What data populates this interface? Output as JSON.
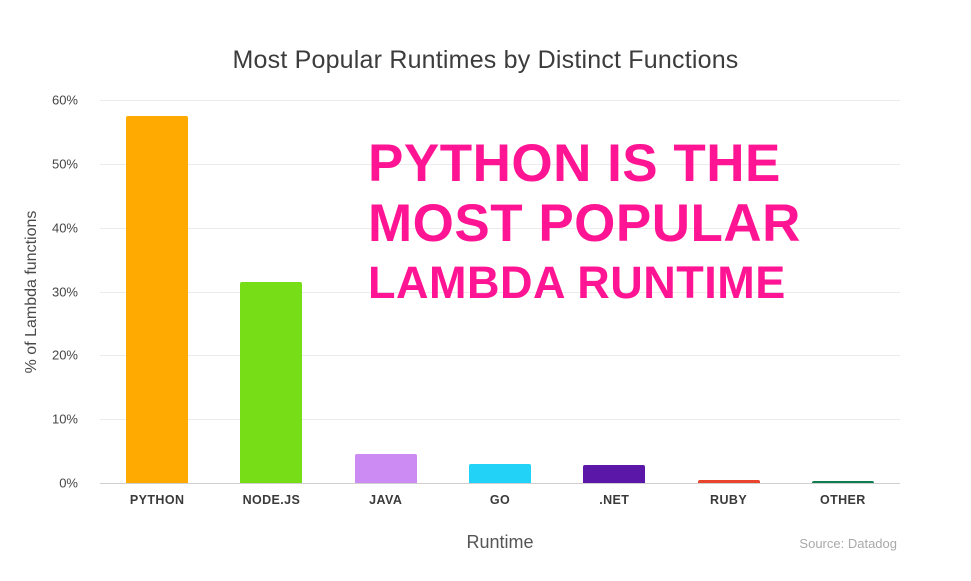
{
  "chart_data": {
    "type": "bar",
    "title": "Most Popular Runtimes by Distinct Functions",
    "categories": [
      "PYTHON",
      "NODE.JS",
      "JAVA",
      "GO",
      ".NET",
      "RUBY",
      "OTHER"
    ],
    "values": [
      57.5,
      31.5,
      4.5,
      3.0,
      2.8,
      0.5,
      0.3
    ],
    "bar_colors": [
      "#ffaa00",
      "#77dd17",
      "#cc8bf2",
      "#22d3f7",
      "#5a17a8",
      "#e8442e",
      "#0f7d4f"
    ],
    "xlabel": "Runtime",
    "ylabel": "% of Lambda functions",
    "ylim": [
      0,
      60
    ],
    "yticks": [
      "60%",
      "50%",
      "40%",
      "30%",
      "20%",
      "10%",
      "0%"
    ],
    "grid": true,
    "legend_position": "none"
  },
  "annotation": {
    "lines": [
      "PYTHON IS THE",
      "MOST POPULAR",
      "LAMBDA RUNTIME"
    ],
    "color": "#ff1493"
  },
  "source": "Source: Datadog"
}
